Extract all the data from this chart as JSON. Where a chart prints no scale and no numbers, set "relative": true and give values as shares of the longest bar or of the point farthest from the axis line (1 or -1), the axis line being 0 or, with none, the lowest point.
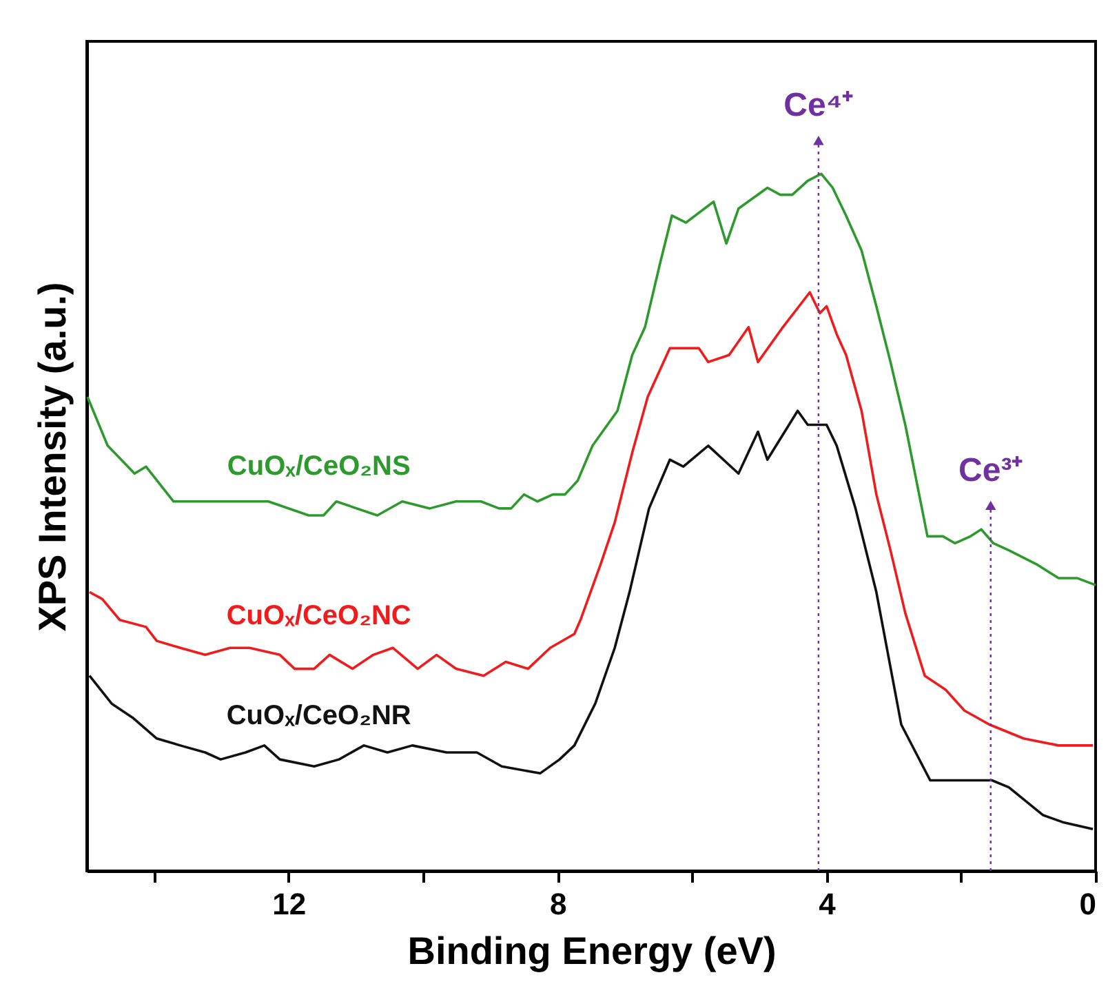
{
  "chart_data": {
    "type": "line",
    "xlabel": "Binding Energy (eV)",
    "ylabel": "XPS Intensity (a.u.)",
    "relative": true,
    "xlim": [
      15,
      0
    ],
    "xticks": [
      {
        "value": 14,
        "label": null
      },
      12,
      {
        "value": 10,
        "label": null
      },
      8,
      {
        "value": 6,
        "label": null
      },
      4,
      {
        "value": 2,
        "label": null
      },
      0
    ],
    "grid": false,
    "legend": false,
    "tick_labels": "x",
    "marker": "none",
    "line_style": "solid",
    "series": [
      {
        "name": "CuOₓ/CeO₂NS",
        "color": "#2e9a2e",
        "x": [
          14.99,
          14.69,
          14.29,
          14.12,
          13.71,
          13.52,
          13.3,
          12.87,
          12.54,
          12.3,
          11.7,
          11.48,
          11.29,
          10.68,
          10.31,
          9.9,
          9.51,
          9.14,
          8.87,
          8.69,
          8.5,
          8.3,
          8.07,
          7.89,
          7.7,
          7.48,
          7.11,
          6.89,
          6.7,
          6.48,
          6.3,
          6.09,
          5.68,
          5.49,
          5.31,
          4.88,
          4.69,
          4.51,
          4.28,
          4.08,
          3.91,
          3.71,
          3.48,
          3.26,
          3.05,
          2.83,
          2.5,
          2.27,
          2.09,
          1.86,
          1.7,
          1.52,
          1.29,
          0.88,
          0.55,
          0.27,
          0
        ],
        "values": [
          0.68,
          0.61,
          0.57,
          0.58,
          0.53,
          0.53,
          0.53,
          0.53,
          0.53,
          0.53,
          0.51,
          0.51,
          0.53,
          0.51,
          0.53,
          0.52,
          0.53,
          0.53,
          0.52,
          0.52,
          0.54,
          0.53,
          0.54,
          0.54,
          0.56,
          0.61,
          0.66,
          0.74,
          0.78,
          0.87,
          0.94,
          0.93,
          0.96,
          0.9,
          0.95,
          0.98,
          0.97,
          0.97,
          0.99,
          1.0,
          0.98,
          0.94,
          0.89,
          0.81,
          0.73,
          0.64,
          0.48,
          0.48,
          0.47,
          0.48,
          0.49,
          0.47,
          0.46,
          0.44,
          0.42,
          0.42,
          0.41
        ]
      },
      {
        "name": "CuOₓ/CeO₂NC",
        "color": "#ee1c1c",
        "x": [
          14.96,
          14.77,
          14.51,
          14.12,
          13.96,
          13.61,
          13.24,
          12.87,
          12.58,
          12.13,
          11.91,
          11.62,
          11.39,
          11.05,
          10.74,
          10.45,
          10.08,
          9.8,
          9.51,
          9.1,
          8.77,
          8.44,
          8.11,
          7.75,
          7.66,
          7.36,
          7.15,
          6.89,
          6.66,
          6.33,
          5.9,
          5.76,
          5.45,
          5.16,
          5.02,
          4.65,
          4.25,
          4.1,
          4.0,
          3.85,
          3.71,
          3.48,
          3.26,
          3.05,
          2.83,
          2.54,
          2.23,
          1.95,
          1.58,
          1.07,
          0.55,
          0.04
        ],
        "values": [
          0.4,
          0.39,
          0.36,
          0.35,
          0.33,
          0.32,
          0.31,
          0.32,
          0.32,
          0.31,
          0.29,
          0.29,
          0.31,
          0.29,
          0.31,
          0.32,
          0.29,
          0.31,
          0.29,
          0.28,
          0.3,
          0.29,
          0.32,
          0.34,
          0.36,
          0.44,
          0.5,
          0.6,
          0.68,
          0.75,
          0.75,
          0.73,
          0.74,
          0.78,
          0.73,
          0.78,
          0.83,
          0.8,
          0.81,
          0.77,
          0.74,
          0.66,
          0.54,
          0.46,
          0.37,
          0.28,
          0.26,
          0.23,
          0.21,
          0.19,
          0.18,
          0.18
        ]
      },
      {
        "name": "CuOₓ/CeO₂NR",
        "color": "#111111",
        "x": [
          14.96,
          14.63,
          14.32,
          13.96,
          13.61,
          13.24,
          13.01,
          12.64,
          12.36,
          12.13,
          11.62,
          11.25,
          10.88,
          10.53,
          10.16,
          9.65,
          9.2,
          8.83,
          8.26,
          7.97,
          7.75,
          7.44,
          7.15,
          6.93,
          6.64,
          6.33,
          6.13,
          5.76,
          5.31,
          5.02,
          4.88,
          4.43,
          4.28,
          4.0,
          3.85,
          3.57,
          3.26,
          2.89,
          2.46,
          1.86,
          1.54,
          1.29,
          0.78,
          0.49,
          0.04
        ],
        "values": [
          0.28,
          0.24,
          0.22,
          0.19,
          0.18,
          0.17,
          0.16,
          0.17,
          0.18,
          0.16,
          0.15,
          0.16,
          0.18,
          0.17,
          0.18,
          0.17,
          0.17,
          0.15,
          0.14,
          0.16,
          0.18,
          0.24,
          0.32,
          0.4,
          0.52,
          0.59,
          0.58,
          0.61,
          0.57,
          0.63,
          0.59,
          0.66,
          0.64,
          0.64,
          0.61,
          0.52,
          0.4,
          0.21,
          0.13,
          0.13,
          0.13,
          0.12,
          0.08,
          0.07,
          0.06
        ]
      }
    ],
    "ref_lines": [
      {
        "axis": "x",
        "value": 4.12,
        "label": "Ce⁴⁺",
        "color": "#7030a0",
        "line_style": "dotted"
      },
      {
        "axis": "x",
        "value": 1.56,
        "label": "Ce³⁺",
        "color": "#7030a0",
        "line_style": "dotted"
      }
    ]
  }
}
